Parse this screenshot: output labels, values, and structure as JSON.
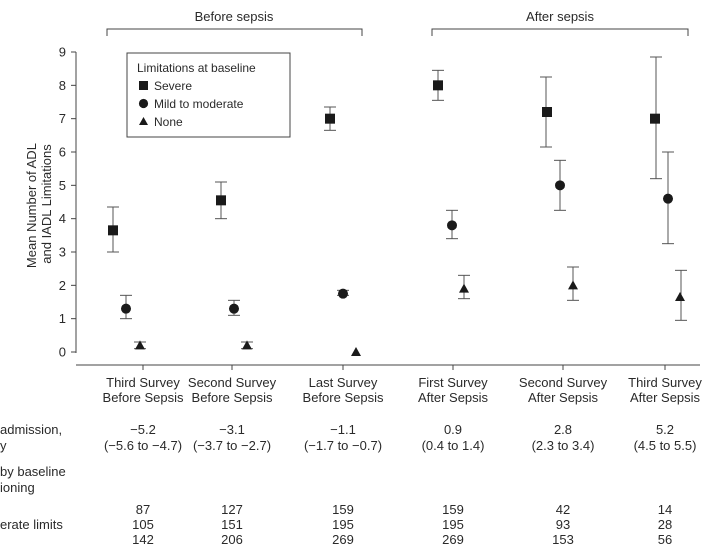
{
  "chart_data": {
    "type": "scatter",
    "ylabel": "Mean Number of ADL and IADL Limitations",
    "ylim": [
      0,
      9
    ],
    "yticks": [
      "0",
      "1",
      "2",
      "3",
      "4",
      "5",
      "6",
      "7",
      "8",
      "9"
    ],
    "grid": false,
    "group_labels": [
      "Before sepsis",
      "After sepsis"
    ],
    "categories": [
      [
        "Third Survey",
        "Before Sepsis"
      ],
      [
        "Second Survey",
        "Before Sepsis"
      ],
      [
        "Last Survey",
        "Before Sepsis"
      ],
      [
        "First Survey",
        "After Sepsis"
      ],
      [
        "Second Survey",
        "After Sepsis"
      ],
      [
        "Third Survey",
        "After Sepsis"
      ]
    ],
    "legend": {
      "title": "Limitations at baseline",
      "placement": "top-left"
    },
    "series": [
      {
        "name": "Severe",
        "marker": "square",
        "values": [
          3.65,
          4.55,
          7.0,
          8.0,
          7.2,
          7.0
        ],
        "ci_low": [
          3.0,
          4.0,
          6.65,
          7.55,
          6.15,
          5.2
        ],
        "ci_high": [
          4.35,
          5.1,
          7.35,
          8.45,
          8.25,
          8.85
        ]
      },
      {
        "name": "Mild to moderate",
        "marker": "circle",
        "values": [
          1.3,
          1.3,
          1.75,
          3.8,
          5.0,
          4.6
        ],
        "ci_low": [
          1.0,
          1.1,
          1.7,
          3.4,
          4.25,
          3.25
        ],
        "ci_high": [
          1.7,
          1.55,
          1.85,
          4.25,
          5.75,
          6.0
        ]
      },
      {
        "name": "None",
        "marker": "triangle",
        "values": [
          0.2,
          0.2,
          0.0,
          1.9,
          2.0,
          1.65
        ],
        "ci_low": [
          0.1,
          0.1,
          0.0,
          1.6,
          1.55,
          0.95
        ],
        "ci_high": [
          0.3,
          0.3,
          0.0,
          2.3,
          2.55,
          2.45
        ]
      }
    ],
    "table": {
      "row1_label_lines": [
        "admission,",
        "y"
      ],
      "row1_values": [
        "−5.2",
        "−3.1",
        "−1.1",
        "0.9",
        "2.8",
        "5.2"
      ],
      "row1_ci": [
        "(−5.6 to −4.7)",
        "(−3.7 to −2.7)",
        "(−1.7 to −0.7)",
        "(0.4 to 1.4)",
        "(2.3 to 3.4)",
        "(4.5 to 5.5)"
      ],
      "row2_label_lines": [
        "by baseline",
        "ioning"
      ],
      "count_rows": [
        {
          "label": "",
          "values": [
            "87",
            "127",
            "159",
            "159",
            "42",
            "14"
          ]
        },
        {
          "label": "erate limits",
          "values": [
            "105",
            "151",
            "195",
            "195",
            "93",
            "28"
          ]
        },
        {
          "label": "",
          "values": [
            "142",
            "206",
            "269",
            "269",
            "153",
            "56"
          ]
        }
      ]
    }
  }
}
